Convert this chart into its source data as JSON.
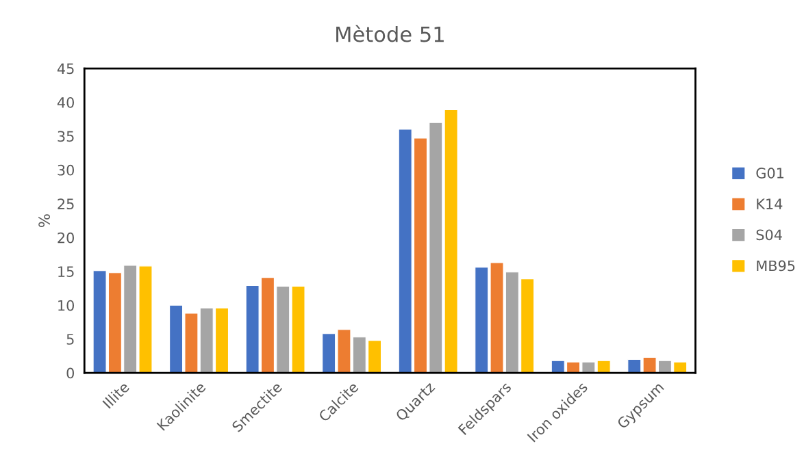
{
  "chart_data": {
    "type": "bar",
    "title": "Mètode 51",
    "ylabel": "%",
    "categories": [
      "Illite",
      "Kaolinite",
      "Smectite",
      "Calcite",
      "Quartz",
      "Feldspars",
      "Iron oxides",
      "Gypsum"
    ],
    "series": [
      {
        "name": "G01",
        "color": "#4472c4",
        "values": [
          15.1,
          10.0,
          12.9,
          5.8,
          36.0,
          15.6,
          1.8,
          2.0
        ]
      },
      {
        "name": "K14",
        "color": "#ed7d31",
        "values": [
          14.8,
          8.8,
          14.1,
          6.4,
          34.7,
          16.3,
          1.6,
          2.3
        ]
      },
      {
        "name": "S04",
        "color": "#a5a5a5",
        "values": [
          15.9,
          9.6,
          12.8,
          5.3,
          37.0,
          14.9,
          1.6,
          1.8
        ]
      },
      {
        "name": "MB95",
        "color": "#ffc000",
        "values": [
          15.8,
          9.6,
          12.8,
          4.8,
          38.9,
          13.9,
          1.8,
          1.6
        ]
      }
    ],
    "ylim": [
      0,
      45
    ],
    "yticks": [
      0,
      5,
      10,
      15,
      20,
      25,
      30,
      35,
      40,
      45
    ],
    "grid": false,
    "legend": "right"
  }
}
